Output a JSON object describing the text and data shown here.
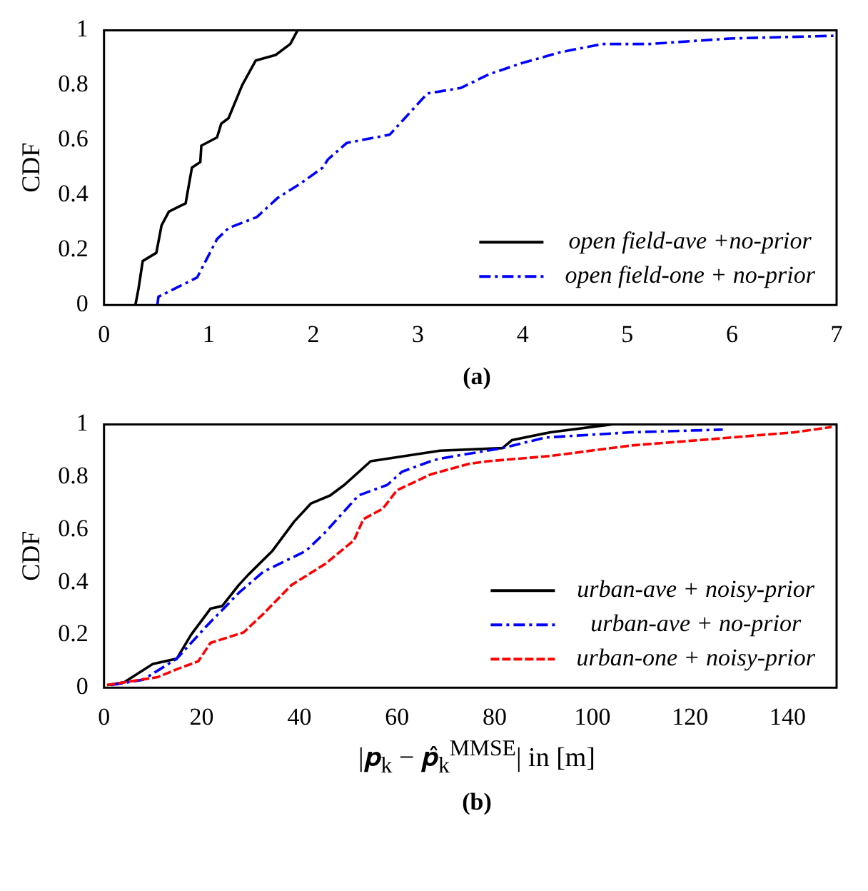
{
  "chart_data": [
    {
      "type": "line",
      "title": "(a)",
      "ylabel": "CDF",
      "xlim": [
        0,
        7
      ],
      "xticks": [
        0,
        1,
        2,
        3,
        4,
        5,
        6,
        7
      ],
      "ylim": [
        0,
        1
      ],
      "yticks": [
        0,
        0.2,
        0.4,
        0.6,
        0.8,
        1
      ],
      "legend": "bottom right",
      "marker": "none",
      "grid": false,
      "series": [
        {
          "name": "open field-ave +no-prior",
          "color": "#000000",
          "line_style": "solid",
          "x": [
            0.3,
            0.33,
            0.37,
            0.5,
            0.55,
            0.62,
            0.78,
            0.84,
            0.92,
            0.93,
            1.08,
            1.12,
            1.19,
            1.32,
            1.45,
            1.64,
            1.78,
            1.85
          ],
          "values": [
            0,
            0.06,
            0.16,
            0.19,
            0.29,
            0.34,
            0.37,
            0.5,
            0.52,
            0.58,
            0.61,
            0.66,
            0.68,
            0.8,
            0.89,
            0.91,
            0.95,
            1
          ]
        },
        {
          "name": "open field-one + no-prior",
          "color": "#0000ff",
          "line_style": "dashdot",
          "x": [
            0.51,
            0.52,
            0.89,
            1.08,
            1.19,
            1.46,
            1.66,
            1.87,
            2.09,
            2.14,
            2.32,
            2.73,
            3.09,
            3.41,
            3.68,
            3.99,
            4.36,
            4.76,
            5.21,
            5.98,
            6.97
          ],
          "values": [
            0,
            0.03,
            0.1,
            0.24,
            0.28,
            0.32,
            0.39,
            0.44,
            0.5,
            0.53,
            0.59,
            0.62,
            0.77,
            0.79,
            0.84,
            0.88,
            0.92,
            0.95,
            0.95,
            0.97,
            0.98
          ]
        }
      ]
    },
    {
      "type": "line",
      "title": "(b)",
      "ylabel": "CDF",
      "xlabel": "|𝒑$_{k}$ − 𝒑̂$_{k}$$^{MMSE}$| in [m]",
      "xlim": [
        0,
        150
      ],
      "xticks": [
        0,
        20,
        40,
        60,
        80,
        100,
        120,
        140
      ],
      "ylim": [
        0,
        1
      ],
      "yticks": [
        0,
        0.2,
        0.4,
        0.6,
        0.8,
        1
      ],
      "legend": "bottom right",
      "marker": "none",
      "grid": false,
      "series": [
        {
          "name": "urban-ave + noisy-prior",
          "color": "#000000",
          "line_style": "solid",
          "x": [
            0.7,
            4.1,
            10,
            14.9,
            17.8,
            21.8,
            24.2,
            27.6,
            29.6,
            34.5,
            38.9,
            42.4,
            46.3,
            49.2,
            54.6,
            68.8,
            81.6,
            83.5,
            91.4,
            104
          ],
          "values": [
            0.01,
            0.02,
            0.09,
            0.11,
            0.2,
            0.3,
            0.31,
            0.39,
            0.43,
            0.52,
            0.63,
            0.7,
            0.73,
            0.77,
            0.86,
            0.9,
            0.91,
            0.94,
            0.97,
            1
          ]
        },
        {
          "name": "urban-ave + no-prior",
          "color": "#0000ff",
          "line_style": "dashdot",
          "x": [
            1.5,
            8,
            14.9,
            20.8,
            27.6,
            32.6,
            41.4,
            45.3,
            52.1,
            58,
            61,
            66.9,
            68.8,
            81.6,
            90.4,
            108,
            126.7
          ],
          "values": [
            0.01,
            0.03,
            0.11,
            0.23,
            0.36,
            0.44,
            0.52,
            0.59,
            0.73,
            0.77,
            0.82,
            0.86,
            0.87,
            0.91,
            0.95,
            0.97,
            0.98
          ]
        },
        {
          "name": "urban-one + noisy-prior",
          "color": "#ff0000",
          "line_style": "dashed",
          "x": [
            0.6,
            11,
            14.9,
            19.3,
            21.8,
            28.6,
            32.6,
            38.4,
            45.3,
            51.2,
            53.1,
            57.1,
            60,
            66.9,
            74.7,
            78.6,
            91.4,
            108,
            121.8,
            141.4,
            149
          ],
          "values": [
            0.01,
            0.04,
            0.07,
            0.1,
            0.17,
            0.21,
            0.28,
            0.39,
            0.47,
            0.56,
            0.64,
            0.68,
            0.75,
            0.81,
            0.85,
            0.86,
            0.88,
            0.92,
            0.94,
            0.97,
            0.99
          ]
        }
      ]
    }
  ]
}
